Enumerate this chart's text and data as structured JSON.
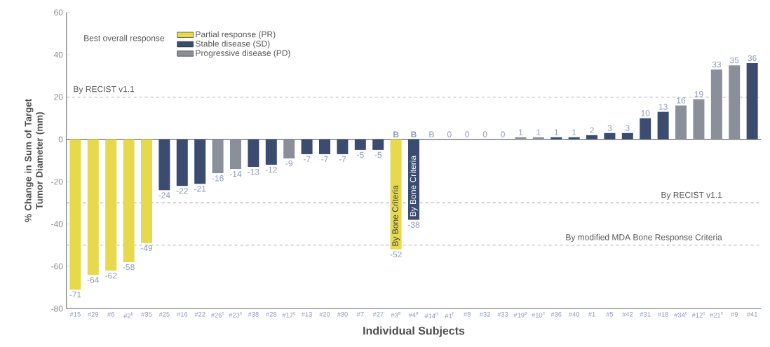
{
  "chart_data": {
    "type": "bar",
    "xlabel": "Individual Subjects",
    "ylabel": "% Change in Sum of Target Tumor Diameter (mm)",
    "legend_title": "Best overall response",
    "legend": "top left",
    "categories": [
      "#15",
      "#29",
      "#6",
      "#2$^{b}$",
      "#35",
      "#25",
      "#16",
      "#22",
      "#26$^{c}$",
      "#23$^{c}$",
      "#38",
      "#28",
      "#17$^{c}$",
      "#13",
      "#20",
      "#30",
      "#7",
      "#27",
      "#3$^{e}$",
      "#4$^{a}$",
      "#14$^{d}$",
      "#1$^{f}$",
      "#8",
      "#32",
      "#33",
      "#19$^{a}$",
      "#10$^{c}$",
      "#36",
      "#40",
      "#1",
      "#5",
      "#42",
      "#31",
      "#18",
      "#34$^{c}$",
      "#12$^{c}$",
      "#21$^{c}$",
      "#9",
      "#41"
    ],
    "series": [
      {
        "name": "Partial response (PR)",
        "color": "#e6da4c",
        "values": [
          -71,
          -64,
          -62,
          -58,
          -49,
          null,
          null,
          null,
          null,
          null,
          null,
          null,
          null,
          null,
          null,
          null,
          null,
          null,
          -52,
          null,
          null,
          null,
          null,
          null,
          null,
          null,
          null,
          null,
          null,
          null,
          null,
          null,
          null,
          null,
          null,
          null,
          null,
          null,
          null
        ]
      },
      {
        "name": "Stable disease (SD)",
        "color": "#3b4c70",
        "values": [
          null,
          null,
          null,
          null,
          null,
          -24,
          -22,
          -21,
          null,
          null,
          -13,
          -12,
          null,
          -7,
          -7,
          -7,
          -5,
          -5,
          null,
          -38,
          null,
          0,
          0,
          0,
          0,
          null,
          null,
          1,
          1,
          2,
          3,
          3,
          10,
          13,
          null,
          null,
          null,
          null,
          36
        ]
      },
      {
        "name": "Progressive disease (PD)",
        "color": "#8a8f99",
        "values": [
          null,
          null,
          null,
          null,
          null,
          null,
          null,
          null,
          -16,
          -14,
          null,
          null,
          -9,
          null,
          null,
          null,
          null,
          null,
          null,
          null,
          null,
          null,
          null,
          null,
          null,
          1,
          1,
          null,
          null,
          null,
          null,
          null,
          null,
          null,
          16,
          19,
          33,
          35,
          null
        ]
      }
    ],
    "value_labels": [
      "-71",
      "-64",
      "-62",
      "-58",
      "-49",
      "-24",
      "-22",
      "-21",
      "-16",
      "-14",
      "-13",
      "-12",
      "-9",
      "-7",
      "-7",
      "-7",
      "-5",
      "-5",
      "-52",
      "-38",
      "B",
      "0",
      "0",
      "0",
      "0",
      "1",
      "1",
      "1",
      "1",
      "2",
      "3",
      "3",
      "10",
      "13",
      "16",
      "19",
      "33",
      "35",
      "36"
    ],
    "annotations": [
      {
        "text": "B",
        "x": "#3$^{e}$",
        "y": 0
      },
      {
        "text": "B",
        "x": "#4$^{a}$",
        "y": 0
      },
      {
        "text": "By Bone Criteria",
        "x": "#3$^{e}$",
        "y": -52
      },
      {
        "text": "By Bone Criteria",
        "x": "#4$^{a}$",
        "y": -38
      }
    ],
    "ref_lines": [
      {
        "axis": "y",
        "value": 20,
        "label": "By RECIST v1.1",
        "color": "#b0b0b0",
        "line_style": "dashed"
      },
      {
        "axis": "y",
        "value": -30,
        "label": "By RECIST v1.1",
        "color": "#b0b0b0",
        "line_style": "dashed"
      },
      {
        "axis": "y",
        "value": -50,
        "label": "By modified MDA Bone Response Criteria",
        "color": "#b0b0b0",
        "line_style": "dashed"
      }
    ],
    "ylim": [
      -80,
      60
    ],
    "yticks": [
      -80,
      -60,
      -40,
      -20,
      0,
      20,
      40,
      60
    ]
  }
}
